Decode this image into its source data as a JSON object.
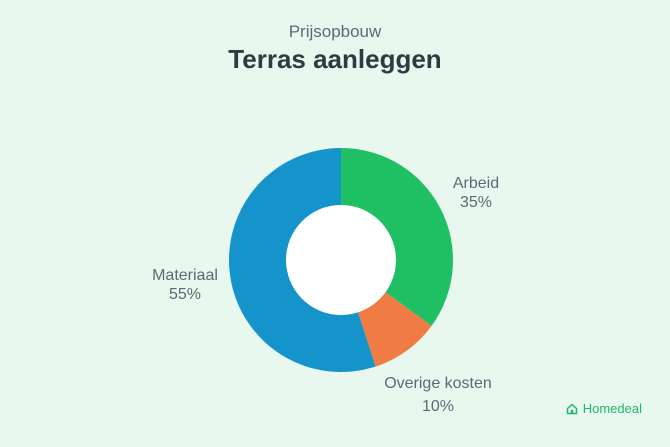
{
  "chart_data": {
    "type": "pie",
    "donut": true,
    "subtitle": "Prijsopbouw",
    "title": "Terras aanleggen",
    "slices": [
      {
        "label": "Arbeid",
        "value": 35,
        "value_label": "35%",
        "color": "#1fbf63"
      },
      {
        "label": "Overige kosten",
        "value": 10,
        "value_label": "10%",
        "color": "#f07b45"
      },
      {
        "label": "Materiaal",
        "value": 55,
        "value_label": "55%",
        "color": "#1594cc"
      }
    ]
  },
  "brand": {
    "name": "Homedeal",
    "icon": "house-icon",
    "color": "#1fb86a"
  }
}
